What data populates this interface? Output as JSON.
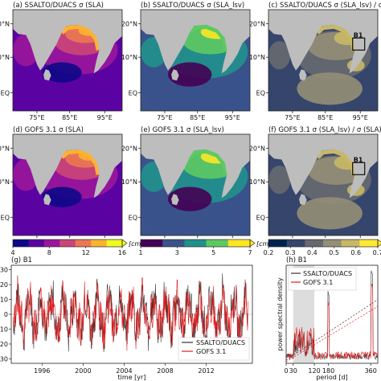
{
  "colors": {
    "land": "#bdbdbd",
    "plasma": [
      "#0d0887",
      "#5b02a3",
      "#9a179b",
      "#cb4678",
      "#eb7852",
      "#fbb32f",
      "#f0f921"
    ],
    "viridis": [
      "#440154",
      "#3b528b",
      "#21918c",
      "#5ec962",
      "#fde725"
    ],
    "cividis": [
      "#00224e",
      "#35456c",
      "#666970",
      "#948e77",
      "#c8b866",
      "#fee838"
    ],
    "ssalto_line": "#333333",
    "gofs_line": "#e31a1c",
    "shading": "#dddddd"
  },
  "maps": {
    "panels": [
      {
        "label": "(a) SSALTO/DUACS σ (SLA)",
        "cmap": "plasma",
        "box": false
      },
      {
        "label": "(b) SSALTO/DUACS σ (SLA_lsv)",
        "cmap": "viridis",
        "box": false
      },
      {
        "label": "(c) SSALTO/DUACS σ (SLA_lsv) / σ (SLA)",
        "cmap": "cividis",
        "box": true
      },
      {
        "label": "(d) GOFS 3.1 σ (SLA)",
        "cmap": "plasma",
        "box": false
      },
      {
        "label": "(e) GOFS 3.1 σ (SLA_lsv)",
        "cmap": "viridis",
        "box": false
      },
      {
        "label": "(f) GOFS 3.1 σ (SLA_lsv) / σ (SLA)",
        "cmap": "cividis",
        "box": true
      }
    ],
    "lon_ticks": [
      "75°E",
      "85°E",
      "95°E"
    ],
    "lat_ticks": [
      "20°N",
      "10°N",
      "EQ"
    ],
    "box_label": "B1"
  },
  "colorbars": [
    {
      "ticks": [
        "4",
        "8",
        "12",
        "16"
      ],
      "unit": "[cm]"
    },
    {
      "ticks": [
        "1",
        "3",
        "5",
        "7"
      ],
      "unit": "[cm]"
    },
    {
      "ticks": [
        "0.2",
        "0.3",
        "0.4",
        "0.5",
        "0.6",
        "0.7"
      ],
      "unit": ""
    }
  ],
  "chart_data": [
    {
      "type": "line",
      "title": "(g) B1",
      "xlabel": "time [yr]",
      "ylabel": "",
      "x_ticks": [
        "1996",
        "2000",
        "2004",
        "2008",
        "2012"
      ],
      "y_ticks": [
        -30,
        -20,
        -10,
        0,
        10,
        20,
        30
      ],
      "xlim": [
        1993,
        2016.5
      ],
      "ylim": [
        -33,
        33
      ],
      "series": [
        {
          "name": "SSALTO/DUACS"
        },
        {
          "name": "GOFS 3.1"
        }
      ],
      "legend": "lower-right"
    },
    {
      "type": "line",
      "title": "(h) B1",
      "xlabel": "period [d]",
      "ylabel": "power spectral density",
      "x_ticks": [
        "0",
        "30",
        "120",
        "180",
        "360"
      ],
      "xlim": [
        0,
        390
      ],
      "shaded_range": [
        30,
        120
      ],
      "series": [
        {
          "name": "SSALTO/DUACS"
        },
        {
          "name": "GOFS 3.1"
        }
      ],
      "legend": "top-left"
    }
  ]
}
